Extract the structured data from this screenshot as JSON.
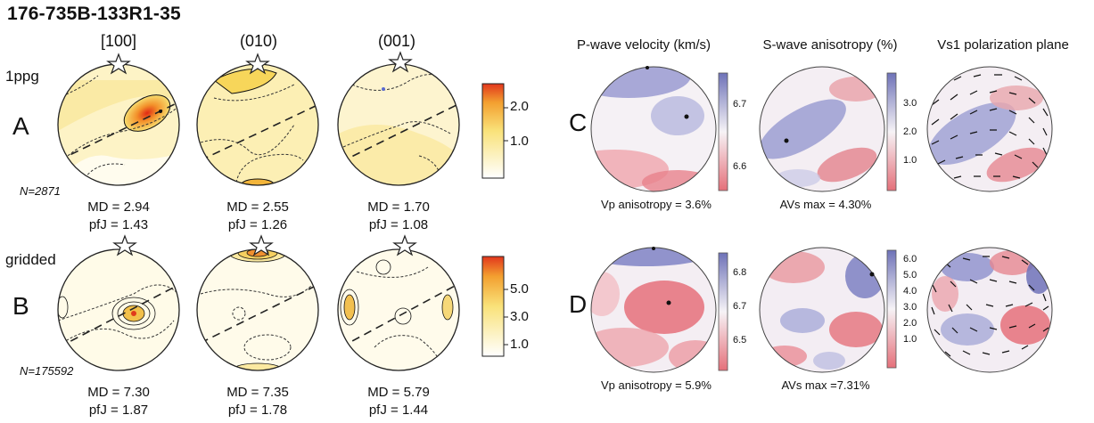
{
  "title": "176-735B-133R1-35",
  "odf": {
    "columns": [
      "[100]",
      "(010)",
      "(001)"
    ],
    "rows": [
      {
        "letter": "A",
        "tag": "1ppg",
        "n_label": "N=2871",
        "colorbar_ticks": [
          "2.0",
          "1.0"
        ],
        "stats": [
          {
            "md": "MD = 2.94",
            "pfj": "pfJ = 1.43"
          },
          {
            "md": "MD = 2.55",
            "pfj": "pfJ = 1.26"
          },
          {
            "md": "MD = 1.70",
            "pfj": "pfJ = 1.08"
          }
        ]
      },
      {
        "letter": "B",
        "tag": "gridded",
        "n_label": "N=175592",
        "colorbar_ticks": [
          "5.0",
          "3.0",
          "1.0"
        ],
        "stats": [
          {
            "md": "MD = 7.30",
            "pfj": "pfJ = 1.87"
          },
          {
            "md": "MD = 7.35",
            "pfj": "pfJ = 1.78"
          },
          {
            "md": "MD = 5.79",
            "pfj": "pfJ = 1.44"
          }
        ]
      }
    ]
  },
  "seismic": {
    "headers": [
      "P-wave velocity (km/s)",
      "S-wave anisotropy (%)",
      "Vs1 polarization plane"
    ],
    "rows": [
      {
        "letter": "C",
        "vp_ticks": [
          "6.7",
          "6.6"
        ],
        "avs_ticks": [
          "3.0",
          "2.0",
          "1.0"
        ],
        "vp_caption": "Vp anisotropy = 3.6%",
        "avs_caption": "AVs max = 4.30%"
      },
      {
        "letter": "D",
        "vp_ticks": [
          "6.8",
          "6.7",
          "6.5"
        ],
        "avs_ticks": [
          "6.0",
          "5.0",
          "4.0",
          "3.0",
          "2.0",
          "1.0"
        ],
        "vp_caption": "Vp anisotropy = 5.9%",
        "avs_caption": "AVs max =7.31%"
      }
    ]
  },
  "colors": {
    "odf_low": "#ffffff",
    "odf_mid": "#f6dc6a",
    "odf_high": "#e4471f",
    "seis_blue": "#6e72b8",
    "seis_red": "#e5707a"
  }
}
